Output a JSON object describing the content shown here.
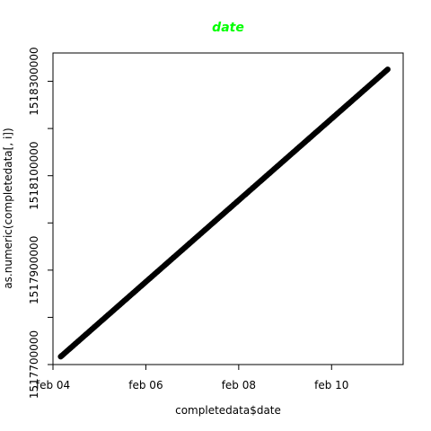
{
  "chart_data": {
    "type": "scatter",
    "title": "date",
    "xlabel": "completedata$date",
    "ylabel": "as.numeric(completedata[, i])",
    "x_ticks": [
      "feb 04",
      "feb 06",
      "feb 08",
      "feb 10"
    ],
    "y_ticks": [
      "1517700000",
      "1517900000",
      "1518100000",
      "1518300000"
    ],
    "xlim": [
      "2018-02-04",
      "2018-02-11T13:00:00"
    ],
    "ylim": [
      1517700000,
      1518360000
    ],
    "grid": false,
    "series": [
      {
        "x": [
          "2018-02-04T04:00:00",
          "2018-02-11T05:00:00"
        ],
        "y": [
          1517716800,
          1518325200
        ],
        "style": "dense-points-forming-line"
      }
    ]
  },
  "colors": {
    "title": "#00ff00",
    "points": "#000000",
    "axes": "#000000"
  }
}
